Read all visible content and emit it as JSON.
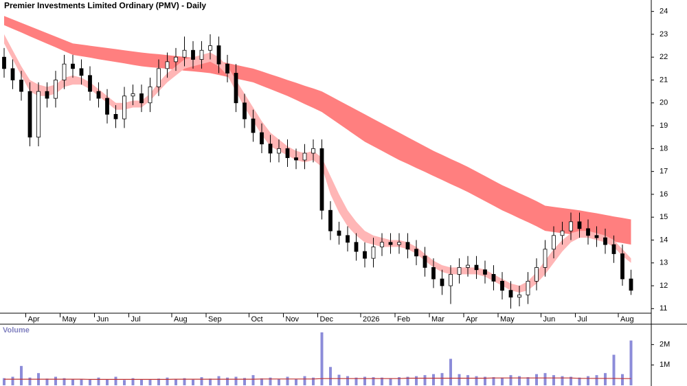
{
  "chart_data": [
    {
      "type": "candlestick",
      "title": "Premier Investments Limited Ordinary (PMV) - Daily",
      "categories": [
        null,
        null,
        null,
        "Apr",
        null,
        null,
        null,
        "May",
        null,
        null,
        null,
        "Jun",
        null,
        null,
        null,
        "Jul",
        null,
        null,
        null,
        null,
        "Aug",
        null,
        null,
        null,
        "Sep",
        null,
        null,
        null,
        null,
        "Oct",
        null,
        null,
        null,
        "Nov",
        null,
        null,
        null,
        "Dec",
        null,
        null,
        null,
        null,
        "2026",
        null,
        null,
        null,
        "Feb",
        null,
        null,
        null,
        "Mar",
        null,
        null,
        null,
        "Apr",
        null,
        null,
        null,
        "May",
        null,
        null,
        null,
        null,
        "Jun",
        null,
        null,
        null,
        "Jul",
        null,
        null,
        null,
        null,
        "Aug",
        null
      ],
      "open": [
        22.0,
        21.5,
        21.0,
        20.5,
        18.5,
        20.5,
        20.2,
        21.0,
        21.7,
        21.5,
        21.2,
        20.5,
        20.2,
        19.5,
        19.3,
        20.3,
        20.4,
        20.0,
        20.7,
        21.5,
        21.8,
        22.0,
        22.3,
        21.9,
        22.3,
        22.5,
        21.7,
        21.3,
        20.0,
        19.3,
        18.7,
        18.2,
        17.8,
        18.0,
        17.6,
        17.5,
        17.8,
        18.0,
        15.3,
        14.4,
        14.2,
        13.9,
        13.5,
        13.2,
        13.7,
        13.9,
        13.8,
        13.9,
        13.6,
        13.3,
        12.8,
        12.3,
        12.0,
        12.5,
        12.8,
        12.9,
        12.7,
        12.5,
        12.2,
        11.8,
        11.5,
        11.6,
        12.2,
        12.8,
        13.6,
        14.2,
        14.4,
        14.8,
        14.5,
        14.2,
        14.1,
        13.8,
        13.4,
        12.3
      ],
      "high": [
        22.4,
        21.9,
        21.4,
        20.9,
        20.9,
        20.9,
        21.4,
        22.1,
        22.1,
        21.9,
        21.6,
        20.9,
        20.6,
        19.9,
        20.7,
        20.8,
        20.8,
        21.1,
        21.9,
        22.2,
        22.4,
        22.9,
        22.7,
        22.7,
        23.0,
        22.9,
        22.1,
        21.7,
        20.4,
        19.7,
        19.1,
        18.6,
        18.4,
        18.4,
        18.0,
        18.2,
        18.4,
        18.4,
        15.7,
        14.8,
        14.6,
        14.3,
        13.9,
        14.1,
        14.3,
        14.3,
        14.3,
        14.3,
        14.0,
        13.7,
        13.2,
        12.7,
        12.9,
        13.2,
        13.3,
        13.3,
        13.1,
        12.9,
        12.6,
        12.2,
        12.0,
        12.6,
        13.2,
        14.0,
        14.6,
        14.8,
        15.2,
        15.2,
        14.9,
        14.6,
        14.5,
        14.2,
        13.8,
        12.7
      ],
      "low": [
        21.1,
        20.6,
        20.1,
        18.1,
        18.1,
        19.8,
        19.8,
        20.6,
        21.1,
        20.8,
        20.1,
        19.8,
        19.1,
        18.9,
        18.9,
        19.9,
        19.6,
        19.6,
        20.3,
        21.1,
        21.4,
        21.6,
        21.5,
        21.5,
        21.9,
        21.3,
        20.9,
        19.6,
        18.9,
        18.3,
        17.8,
        17.4,
        17.4,
        17.2,
        17.1,
        17.1,
        17.4,
        14.9,
        14.0,
        13.8,
        13.5,
        13.1,
        12.8,
        12.8,
        13.3,
        13.4,
        13.4,
        13.2,
        12.9,
        12.4,
        11.9,
        11.6,
        11.2,
        12.1,
        12.4,
        12.3,
        12.1,
        11.8,
        11.4,
        11.0,
        11.1,
        11.2,
        11.8,
        12.4,
        13.2,
        13.8,
        14.0,
        14.1,
        13.8,
        13.7,
        13.4,
        13.0,
        12.0,
        11.6
      ],
      "close": [
        21.5,
        21.0,
        20.5,
        18.5,
        20.5,
        20.2,
        21.0,
        21.7,
        21.5,
        21.2,
        20.5,
        20.2,
        19.5,
        19.3,
        20.3,
        20.4,
        20.0,
        20.7,
        21.5,
        21.8,
        22.0,
        22.3,
        21.9,
        22.3,
        22.5,
        21.7,
        21.3,
        20.0,
        19.3,
        18.7,
        18.2,
        17.8,
        18.0,
        17.6,
        17.5,
        17.8,
        18.0,
        15.3,
        14.4,
        14.2,
        13.9,
        13.5,
        13.2,
        13.7,
        13.9,
        13.8,
        13.9,
        13.6,
        13.3,
        12.8,
        12.3,
        12.0,
        12.5,
        12.8,
        12.9,
        12.7,
        12.5,
        12.2,
        11.8,
        11.5,
        11.6,
        12.2,
        12.8,
        13.6,
        14.2,
        14.4,
        14.8,
        14.5,
        14.2,
        14.1,
        13.8,
        13.4,
        12.3,
        11.8
      ],
      "slow_band": {
        "color": "#ff7f7f",
        "upper": [
          23.8,
          23.65,
          23.5,
          23.35,
          23.2,
          23.05,
          22.9,
          22.75,
          22.6,
          22.55,
          22.5,
          22.45,
          22.4,
          22.35,
          22.3,
          22.25,
          22.2,
          22.16,
          22.13,
          22.09,
          22.05,
          22.01,
          21.98,
          21.94,
          21.9,
          21.82,
          21.74,
          21.66,
          21.58,
          21.5,
          21.38,
          21.25,
          21.13,
          21.0,
          20.88,
          20.75,
          20.63,
          20.5,
          20.3,
          20.1,
          19.9,
          19.7,
          19.5,
          19.3,
          19.1,
          18.9,
          18.7,
          18.5,
          18.3,
          18.1,
          17.9,
          17.73,
          17.55,
          17.38,
          17.2,
          17.0,
          16.8,
          16.6,
          16.4,
          16.23,
          16.05,
          15.88,
          15.7,
          15.5,
          15.45,
          15.4,
          15.35,
          15.3,
          15.23,
          15.17,
          15.1,
          15.03,
          14.97,
          14.9
        ],
        "lower": [
          23.4,
          23.24,
          23.08,
          22.91,
          22.75,
          22.59,
          22.43,
          22.26,
          22.1,
          22.04,
          21.98,
          21.91,
          21.85,
          21.79,
          21.73,
          21.66,
          21.6,
          21.56,
          21.53,
          21.49,
          21.45,
          21.41,
          21.38,
          21.34,
          21.3,
          21.22,
          21.14,
          21.06,
          20.98,
          20.9,
          20.75,
          20.6,
          20.45,
          20.3,
          20.13,
          19.95,
          19.78,
          19.6,
          19.34,
          19.08,
          18.82,
          18.56,
          18.3,
          18.1,
          17.9,
          17.7,
          17.5,
          17.33,
          17.15,
          16.98,
          16.8,
          16.63,
          16.45,
          16.28,
          16.1,
          15.9,
          15.7,
          15.5,
          15.3,
          15.13,
          14.95,
          14.78,
          14.6,
          14.4,
          14.35,
          14.3,
          14.25,
          14.2,
          14.13,
          14.07,
          14.0,
          13.93,
          13.87,
          13.8
        ]
      },
      "fast_band": {
        "color": "#ffb6b6",
        "upper": [
          23.0,
          22.3,
          21.6,
          21.0,
          20.8,
          20.7,
          20.8,
          21.1,
          21.2,
          21.1,
          20.9,
          20.6,
          20.3,
          20.0,
          20.0,
          20.1,
          20.1,
          20.4,
          20.9,
          21.3,
          21.6,
          21.9,
          22.0,
          22.1,
          22.2,
          22.0,
          21.6,
          21.0,
          20.4,
          19.8,
          19.2,
          18.7,
          18.4,
          18.1,
          17.9,
          17.8,
          17.9,
          17.6,
          16.8,
          16.0,
          15.3,
          14.8,
          14.4,
          14.2,
          14.1,
          14.0,
          14.0,
          13.9,
          13.7,
          13.4,
          13.1,
          12.9,
          12.8,
          12.8,
          12.8,
          12.8,
          12.7,
          12.5,
          12.3,
          12.1,
          12.0,
          12.2,
          12.6,
          13.1,
          13.6,
          14.0,
          14.3,
          14.4,
          14.4,
          14.3,
          14.2,
          14.0,
          13.6,
          13.2
        ],
        "lower": [
          22.6,
          21.9,
          21.2,
          20.5,
          20.3,
          20.3,
          20.4,
          20.7,
          20.8,
          20.8,
          20.6,
          20.3,
          20.0,
          19.7,
          19.7,
          19.8,
          19.8,
          20.1,
          20.5,
          20.9,
          21.2,
          21.5,
          21.6,
          21.7,
          21.8,
          21.6,
          21.2,
          20.5,
          19.8,
          19.2,
          18.6,
          18.1,
          17.9,
          17.7,
          17.5,
          17.4,
          17.5,
          17.2,
          16.0,
          15.2,
          14.6,
          14.2,
          13.9,
          13.8,
          13.7,
          13.7,
          13.7,
          13.6,
          13.4,
          13.1,
          12.8,
          12.6,
          12.5,
          12.5,
          12.5,
          12.5,
          12.4,
          12.2,
          12.0,
          11.8,
          11.7,
          11.8,
          12.1,
          12.5,
          13.0,
          13.5,
          13.9,
          14.1,
          14.1,
          14.0,
          13.9,
          13.7,
          13.3,
          13.0
        ]
      },
      "up_color": "#ffffff",
      "down_color": "#000000",
      "ylim": [
        10.8,
        24.5
      ],
      "yticks": [
        11,
        12,
        13,
        14,
        15,
        16,
        17,
        18,
        19,
        20,
        21,
        22,
        23,
        24
      ]
    },
    {
      "type": "bar",
      "label": "Volume",
      "values": [
        350000,
        420000,
        950000,
        380000,
        600000,
        330000,
        420000,
        350000,
        300000,
        320000,
        280000,
        380000,
        300000,
        420000,
        260000,
        350000,
        300000,
        270000,
        330000,
        380000,
        300000,
        350000,
        280000,
        400000,
        330000,
        450000,
        380000,
        420000,
        360000,
        500000,
        340000,
        380000,
        320000,
        420000,
        300000,
        450000,
        380000,
        2600000,
        900000,
        520000,
        450000,
        380000,
        420000,
        400000,
        380000,
        350000,
        400000,
        420000,
        450000,
        500000,
        550000,
        600000,
        1300000,
        550000,
        500000,
        450000,
        420000,
        400000,
        380000,
        500000,
        450000,
        400000,
        550000,
        600000,
        500000,
        450000,
        420000,
        380000,
        450000,
        500000,
        600000,
        1500000,
        550000,
        2200000
      ],
      "color": "#8c8cd9",
      "ma": {
        "color": "#c03030",
        "values": [
          300000,
          300000,
          300000,
          300000,
          300000,
          300000,
          300000,
          300000,
          300000,
          300000,
          290000,
          290000,
          290000,
          290000,
          290000,
          290000,
          290000,
          290000,
          290000,
          290000,
          300000,
          300000,
          300000,
          300000,
          300000,
          300000,
          300000,
          300000,
          300000,
          300000,
          310000,
          310000,
          310000,
          310000,
          310000,
          310000,
          310000,
          330000,
          330000,
          330000,
          330000,
          330000,
          330000,
          330000,
          330000,
          330000,
          330000,
          350000,
          350000,
          350000,
          350000,
          350000,
          350000,
          350000,
          350000,
          350000,
          350000,
          360000,
          360000,
          360000,
          360000,
          360000,
          360000,
          360000,
          360000,
          360000,
          360000,
          340000,
          340000,
          340000,
          340000,
          340000,
          330000,
          330000
        ]
      },
      "ylim": [
        0,
        3000000
      ],
      "yticks": [
        {
          "value": 1000000,
          "label": "1M"
        },
        {
          "value": 2000000,
          "label": "2M"
        }
      ]
    }
  ]
}
